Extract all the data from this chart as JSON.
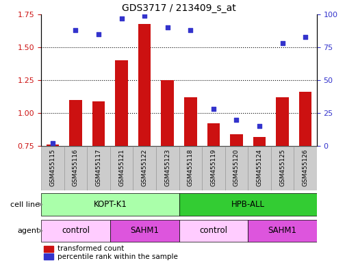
{
  "title": "GDS3717 / 213409_s_at",
  "samples": [
    "GSM455115",
    "GSM455116",
    "GSM455117",
    "GSM455121",
    "GSM455122",
    "GSM455123",
    "GSM455118",
    "GSM455119",
    "GSM455120",
    "GSM455124",
    "GSM455125",
    "GSM455126"
  ],
  "bar_values": [
    0.76,
    1.1,
    1.09,
    1.4,
    1.68,
    1.25,
    1.12,
    0.92,
    0.84,
    0.82,
    1.12,
    1.16
  ],
  "dot_values": [
    2,
    88,
    85,
    97,
    99,
    90,
    88,
    28,
    20,
    15,
    78,
    83
  ],
  "bar_color": "#cc1111",
  "dot_color": "#3333cc",
  "ylim_left": [
    0.75,
    1.75
  ],
  "ylim_right": [
    0,
    100
  ],
  "yticks_left": [
    0.75,
    1.0,
    1.25,
    1.5,
    1.75
  ],
  "yticks_right": [
    0,
    25,
    50,
    75,
    100
  ],
  "cell_line_labels": [
    "KOPT-K1",
    "HPB-ALL"
  ],
  "cell_line_spans": [
    [
      0,
      5
    ],
    [
      6,
      11
    ]
  ],
  "cell_line_colors": [
    "#aaffaa",
    "#33cc33"
  ],
  "agent_groups": [
    {
      "label": "control",
      "span": [
        0,
        2
      ],
      "color": "#ffccff"
    },
    {
      "label": "SAHM1",
      "span": [
        3,
        5
      ],
      "color": "#dd55dd"
    },
    {
      "label": "control",
      "span": [
        6,
        8
      ],
      "color": "#ffccff"
    },
    {
      "label": "SAHM1",
      "span": [
        9,
        11
      ],
      "color": "#dd55dd"
    }
  ],
  "legend_bar_label": "transformed count",
  "legend_dot_label": "percentile rank within the sample",
  "cell_line_row_label": "cell line",
  "agent_row_label": "agent",
  "tick_color_left": "#cc1111",
  "tick_color_right": "#3333cc",
  "xtick_bg_color": "#cccccc",
  "xtick_bg_border": "#999999"
}
